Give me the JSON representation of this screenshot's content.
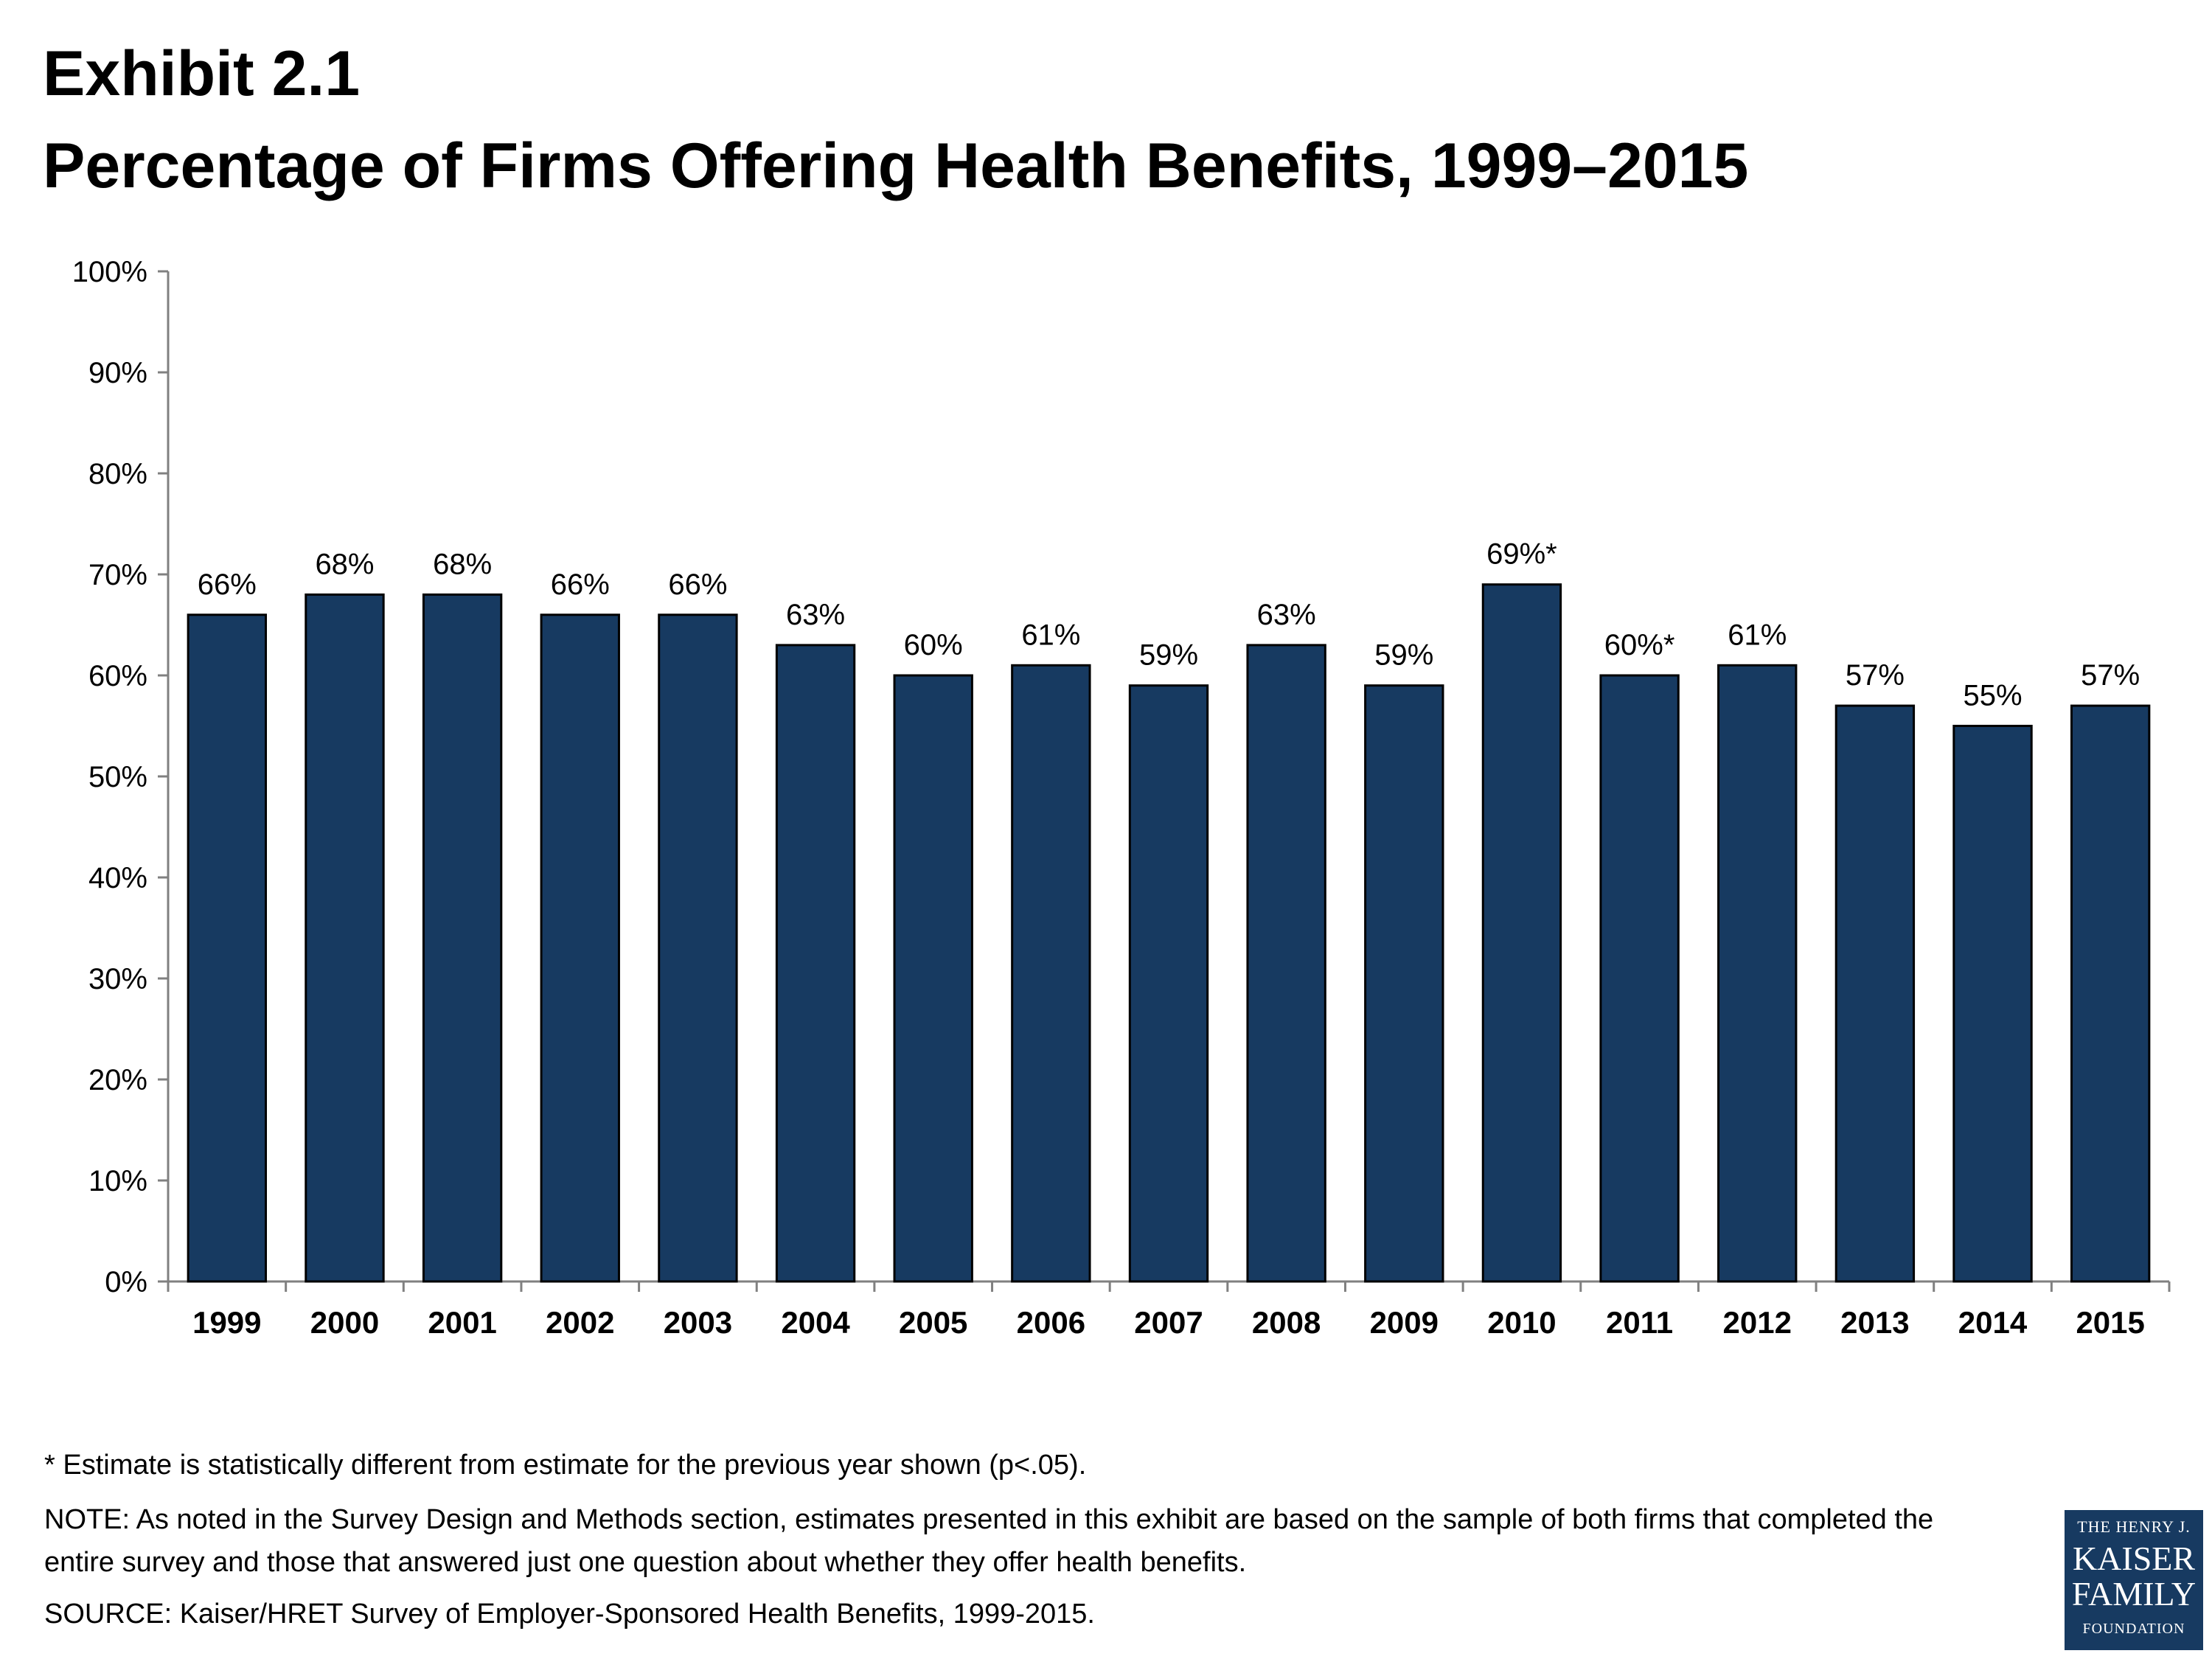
{
  "header": {
    "exhibit": "Exhibit 2.1",
    "title": "Percentage of Firms Offering Health Benefits, 1999–2015"
  },
  "chart_data": {
    "type": "bar",
    "title": "Percentage of Firms Offering Health Benefits, 1999–2015",
    "categories": [
      "1999",
      "2000",
      "2001",
      "2002",
      "2003",
      "2004",
      "2005",
      "2006",
      "2007",
      "2008",
      "2009",
      "2010",
      "2011",
      "2012",
      "2013",
      "2014",
      "2015"
    ],
    "values": [
      66,
      68,
      68,
      66,
      66,
      63,
      60,
      61,
      59,
      63,
      59,
      69,
      60,
      61,
      57,
      55,
      57
    ],
    "value_labels": [
      "66%",
      "68%",
      "68%",
      "66%",
      "66%",
      "63%",
      "60%",
      "61%",
      "59%",
      "63%",
      "59%",
      "69%*",
      "60%*",
      "61%",
      "57%",
      "55%",
      "57%"
    ],
    "ylim": [
      0,
      100
    ],
    "yticks": [
      0,
      10,
      20,
      30,
      40,
      50,
      60,
      70,
      80,
      90,
      100
    ],
    "ytick_labels": [
      "0%",
      "10%",
      "20%",
      "30%",
      "40%",
      "50%",
      "60%",
      "70%",
      "80%",
      "90%",
      "100%"
    ],
    "xlabel": "",
    "ylabel": "",
    "grid": false,
    "bar_color": "#173a61"
  },
  "notes": {
    "star": "* Estimate is statistically different from estimate for the previous year shown (p<.05).",
    "note": "NOTE: As noted in the Survey Design and Methods section, estimates presented in this exhibit are based on the sample of both firms that completed the entire survey and those that answered just one question about whether they offer health benefits.",
    "source": "SOURCE: Kaiser/HRET Survey of Employer-Sponsored Health Benefits, 1999-2015."
  },
  "logo": {
    "line1": "THE HENRY J.",
    "line2": "KAISER",
    "line3": "FAMILY",
    "line4": "FOUNDATION",
    "color": "#173a61"
  }
}
